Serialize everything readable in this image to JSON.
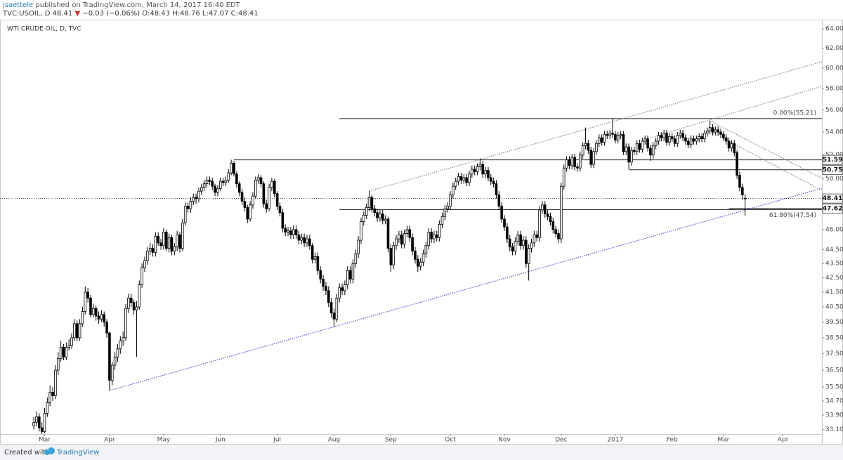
{
  "header": {
    "author": "jsaettele",
    "published": "published on TradingView.com, March 14, 2017 16:40 EDT",
    "symbol": "TVC:USOIL, D",
    "last": "48.41",
    "arrow": "▼",
    "change": "−0.03 (−0.06%)",
    "open": "O:48.43",
    "high": "H:48.76",
    "low": "L:47.07",
    "close": "C:48.41"
  },
  "footer": {
    "created": "Created with",
    "brand": "TradingView"
  },
  "chart_data": {
    "type": "candlestick",
    "title": "WTI CRUDE OIL, D, TVC",
    "log_scale": true,
    "grid": false,
    "up_color": "#ffffff",
    "down_color": "#000000",
    "border_color": "#000000",
    "xlim": [
      -12.5,
      291.4
    ],
    "ylim": [
      32.86,
      64.97
    ],
    "xticks": [
      {
        "value": 4,
        "label": "Mar"
      },
      {
        "value": 28,
        "label": "Apr"
      },
      {
        "value": 48,
        "label": "May"
      },
      {
        "value": 69,
        "label": "Jun"
      },
      {
        "value": 90,
        "label": "Jul"
      },
      {
        "value": 111,
        "label": "Aug"
      },
      {
        "value": 132,
        "label": "Sep"
      },
      {
        "value": 154,
        "label": "Oct"
      },
      {
        "value": 174,
        "label": "Nov"
      },
      {
        "value": 195,
        "label": "Dec"
      },
      {
        "value": 215,
        "label": "2017"
      },
      {
        "value": 236,
        "label": "Feb"
      },
      {
        "value": 255,
        "label": "Mar"
      },
      {
        "value": 277,
        "label": "Apr"
      }
    ],
    "yticks": [
      {
        "value": 64,
        "label": "64.00"
      },
      {
        "value": 62,
        "label": "62.00"
      },
      {
        "value": 60,
        "label": "60.00"
      },
      {
        "value": 58,
        "label": "58.00"
      },
      {
        "value": 56,
        "label": "56.00"
      },
      {
        "value": 54,
        "label": "54.00"
      },
      {
        "value": 52,
        "label": "52.00"
      },
      {
        "value": 50,
        "label": "50.00"
      },
      {
        "value": 46,
        "label": "46.00"
      },
      {
        "value": 44.5,
        "label": "44.50"
      },
      {
        "value": 43.5,
        "label": "43.50"
      },
      {
        "value": 42.5,
        "label": "42.50"
      },
      {
        "value": 41.5,
        "label": "41.50"
      },
      {
        "value": 40.5,
        "label": "40.50"
      },
      {
        "value": 39.5,
        "label": "39.50"
      },
      {
        "value": 38.5,
        "label": "38.50"
      },
      {
        "value": 37.5,
        "label": "37.50"
      },
      {
        "value": 36.5,
        "label": "36.50"
      },
      {
        "value": 35.5,
        "label": "35.50"
      },
      {
        "value": 34.7,
        "label": "34.70"
      },
      {
        "value": 33.9,
        "label": "33.90"
      },
      {
        "value": 33.1,
        "label": "33.10"
      }
    ],
    "open": [
      33.3,
      33.5,
      33.8,
      33.2,
      33.0,
      34.0,
      34.6,
      35.2,
      35.0,
      36.5,
      37.2,
      37.9,
      37.3,
      37.9,
      38.0,
      38.5,
      39.4,
      38.5,
      39.4,
      40.2,
      41.5,
      41.1,
      40.0,
      40.4,
      39.9,
      39.7,
      40.0,
      39.5,
      38.8,
      35.9,
      36.8,
      37.3,
      37.8,
      38.3,
      38.5,
      40.4,
      41.1,
      40.8,
      40.3,
      40.5,
      42.0,
      43.2,
      43.7,
      44.4,
      44.6,
      44.3,
      45.5,
      45.0,
      44.8,
      45.8,
      44.6,
      45.4,
      44.4,
      44.7,
      45.6,
      44.6,
      46.5,
      47.8,
      47.6,
      48.2,
      48.5,
      48.4,
      49.0,
      49.3,
      49.6,
      49.9,
      49.8,
      49.4,
      48.9,
      49.2,
      49.8,
      49.7,
      49.9,
      50.5,
      51.3,
      50.4,
      49.6,
      48.9,
      48.2,
      47.7,
      46.8,
      47.9,
      48.6,
      49.9,
      50.1,
      49.6,
      48.0,
      47.6,
      49.3,
      49.8,
      48.8,
      47.8,
      47.3,
      46.1,
      45.8,
      45.9,
      45.6,
      46.0,
      45.6,
      45.2,
      45.4,
      45.0,
      45.3,
      44.8,
      43.8,
      44.0,
      43.0,
      42.4,
      41.9,
      41.6,
      40.8,
      40.1,
      39.7,
      41.1,
      41.8,
      41.6,
      42.0,
      43.0,
      42.4,
      43.5,
      44.2,
      45.2,
      46.6,
      47.1,
      47.7,
      48.5,
      47.6,
      47.3,
      46.9,
      47.2,
      46.7,
      46.8,
      44.6,
      43.4,
      44.8,
      45.3,
      45.6,
      44.9,
      45.7,
      46.0,
      45.4,
      44.4,
      43.8,
      43.3,
      43.6,
      44.2,
      44.8,
      45.8,
      45.3,
      45.6,
      45.4,
      46.4,
      47.0,
      47.6,
      47.8,
      48.7,
      49.4,
      49.8,
      50.2,
      49.9,
      50.1,
      49.7,
      50.4,
      50.8,
      50.6,
      51.0,
      51.2,
      50.4,
      50.7,
      50.1,
      49.8,
      49.6,
      48.7,
      47.8,
      46.8,
      46.2,
      45.3,
      44.7,
      44.4,
      45.1,
      45.6,
      44.8,
      45.2,
      43.5,
      44.6,
      45.0,
      45.6,
      45.4,
      47.5,
      47.9,
      47.2,
      47.0,
      46.6,
      46.0,
      45.7,
      45.3,
      49.4,
      50.9,
      51.6,
      51.1,
      51.8,
      51.0,
      50.9,
      52.0,
      52.8,
      53.0,
      52.4,
      51.2,
      52.3,
      53.0,
      53.5,
      53.1,
      53.8,
      53.7,
      53.9,
      53.8,
      53.3,
      53.7,
      53.8,
      52.3,
      52.7,
      51.4,
      52.4,
      52.3,
      53.0,
      52.5,
      53.2,
      53.4,
      52.6,
      52.0,
      52.8,
      53.2,
      53.7,
      53.5,
      53.9,
      53.1,
      53.6,
      53.4,
      53.0,
      53.7,
      53.9,
      53.5,
      53.2,
      52.9,
      53.4,
      53.2,
      53.4,
      53.6,
      53.4,
      53.9,
      54.1,
      54.4,
      54.0,
      54.2,
      54.0,
      53.8,
      53.5,
      53.2,
      52.6,
      53.0,
      52.2,
      50.3,
      49.3,
      48.43
    ],
    "high": [
      33.8,
      34.1,
      34.0,
      33.5,
      34.3,
      34.9,
      35.6,
      35.5,
      36.8,
      37.6,
      38.3,
      38.1,
      38.2,
      38.4,
      38.8,
      39.7,
      39.6,
      39.7,
      40.5,
      41.9,
      41.8,
      41.3,
      40.7,
      40.6,
      40.2,
      40.3,
      40.2,
      39.7,
      38.9,
      37.0,
      37.6,
      38.1,
      38.6,
      38.9,
      40.7,
      41.4,
      41.4,
      41.0,
      40.9,
      42.3,
      43.5,
      44.0,
      44.7,
      45.0,
      44.9,
      45.8,
      45.8,
      45.3,
      46.1,
      46.0,
      45.7,
      45.6,
      45.0,
      45.9,
      45.8,
      46.8,
      48.1,
      48.1,
      48.5,
      48.8,
      48.8,
      49.3,
      49.6,
      49.9,
      50.2,
      50.2,
      50.1,
      49.6,
      49.5,
      50.1,
      50.1,
      50.2,
      50.8,
      51.6,
      51.5,
      50.6,
      49.8,
      49.2,
      48.5,
      47.9,
      48.2,
      48.9,
      50.2,
      50.4,
      50.3,
      49.8,
      48.3,
      49.6,
      50.1,
      50.0,
      49.0,
      48.1,
      47.6,
      46.4,
      46.2,
      46.2,
      46.3,
      46.3,
      45.9,
      45.7,
      45.7,
      45.6,
      45.6,
      45.0,
      44.3,
      44.3,
      43.3,
      42.7,
      42.2,
      41.9,
      41.1,
      40.4,
      41.4,
      42.1,
      42.1,
      42.3,
      43.3,
      43.3,
      43.8,
      44.5,
      45.5,
      46.9,
      47.4,
      48.0,
      49.0,
      48.7,
      47.9,
      47.6,
      47.5,
      47.5,
      47.1,
      47.0,
      44.9,
      45.1,
      45.6,
      45.9,
      45.9,
      46.0,
      46.3,
      46.3,
      45.7,
      44.7,
      44.1,
      43.9,
      44.5,
      45.1,
      46.1,
      46.1,
      45.9,
      45.9,
      46.7,
      47.3,
      47.9,
      48.1,
      49.0,
      49.7,
      50.1,
      50.5,
      50.5,
      50.4,
      50.4,
      50.7,
      51.1,
      51.1,
      51.3,
      51.7,
      51.5,
      51.0,
      51.0,
      50.4,
      50.1,
      49.9,
      49.0,
      48.1,
      47.1,
      46.5,
      45.6,
      45.0,
      45.4,
      45.9,
      45.9,
      45.5,
      45.5,
      44.9,
      45.3,
      45.9,
      45.9,
      47.8,
      48.2,
      48.2,
      47.5,
      47.3,
      46.9,
      46.3,
      46.0,
      49.7,
      51.2,
      51.9,
      51.9,
      52.1,
      52.1,
      51.3,
      52.3,
      53.1,
      54.4,
      53.3,
      52.7,
      52.6,
      53.3,
      53.8,
      53.8,
      54.1,
      54.1,
      54.2,
      55.2,
      54.1,
      54.0,
      54.1,
      54.1,
      53.0,
      53.0,
      52.7,
      52.7,
      53.3,
      53.3,
      53.5,
      53.7,
      53.7,
      52.9,
      53.1,
      53.5,
      54.0,
      54.0,
      54.2,
      54.2,
      53.9,
      53.9,
      53.7,
      54.0,
      54.2,
      54.2,
      53.8,
      53.5,
      53.7,
      53.7,
      53.7,
      53.9,
      53.9,
      54.2,
      54.4,
      55.0,
      54.7,
      54.5,
      54.5,
      54.3,
      54.1,
      53.8,
      53.5,
      53.3,
      53.3,
      52.4,
      50.6,
      49.6,
      48.76
    ],
    "low": [
      33.1,
      33.3,
      33.0,
      32.8,
      32.9,
      33.8,
      34.4,
      34.7,
      34.8,
      36.2,
      37.0,
      37.1,
      37.1,
      37.7,
      37.8,
      38.3,
      38.3,
      38.3,
      39.2,
      40.0,
      40.8,
      39.8,
      39.8,
      39.6,
      39.4,
      39.5,
      39.2,
      38.5,
      35.3,
      35.6,
      36.5,
      37.0,
      37.5,
      38.0,
      38.3,
      40.1,
      40.5,
      40.0,
      37.3,
      40.3,
      41.8,
      42.9,
      43.4,
      44.1,
      44.0,
      44.0,
      44.8,
      44.5,
      44.5,
      44.4,
      44.3,
      44.1,
      44.1,
      44.4,
      44.3,
      44.4,
      46.3,
      47.3,
      47.3,
      47.9,
      48.0,
      48.1,
      48.7,
      49.0,
      49.3,
      49.5,
      49.1,
      48.6,
      48.6,
      49.0,
      49.4,
      49.4,
      49.7,
      50.3,
      50.2,
      49.3,
      48.6,
      47.9,
      47.4,
      46.5,
      46.6,
      47.6,
      48.4,
      49.6,
      49.3,
      47.7,
      47.3,
      47.4,
      49.0,
      48.5,
      47.5,
      47.0,
      45.8,
      45.5,
      45.5,
      45.3,
      45.3,
      45.3,
      44.9,
      44.9,
      44.7,
      44.7,
      44.5,
      43.5,
      43.5,
      42.7,
      42.1,
      41.6,
      41.3,
      40.5,
      39.8,
      39.2,
      39.5,
      40.8,
      41.3,
      41.3,
      41.7,
      42.1,
      42.1,
      43.2,
      43.9,
      44.9,
      46.3,
      46.8,
      47.4,
      47.3,
      47.0,
      46.6,
      46.6,
      46.4,
      46.4,
      44.3,
      42.9,
      43.1,
      44.5,
      45.0,
      44.6,
      44.6,
      45.4,
      45.1,
      44.1,
      43.5,
      42.9,
      43.0,
      43.3,
      43.9,
      44.5,
      45.0,
      45.0,
      45.1,
      45.1,
      46.1,
      46.7,
      47.3,
      47.5,
      48.4,
      49.1,
      49.5,
      49.6,
      49.6,
      49.4,
      49.4,
      50.1,
      50.3,
      50.3,
      50.7,
      50.1,
      50.1,
      49.8,
      49.5,
      49.3,
      48.4,
      47.5,
      46.5,
      45.9,
      45.0,
      44.4,
      44.1,
      44.1,
      44.8,
      44.5,
      44.5,
      43.2,
      42.3,
      44.3,
      44.7,
      45.1,
      45.1,
      47.2,
      46.9,
      46.7,
      46.3,
      45.7,
      45.4,
      45.0,
      45.0,
      49.1,
      50.6,
      50.8,
      50.8,
      50.7,
      50.6,
      50.6,
      51.7,
      52.5,
      52.1,
      50.9,
      50.9,
      52.0,
      52.7,
      52.8,
      52.8,
      53.4,
      53.4,
      53.5,
      53.0,
      53.0,
      53.4,
      52.0,
      52.0,
      50.8,
      51.1,
      52.0,
      52.0,
      52.2,
      52.2,
      52.9,
      52.3,
      51.5,
      51.7,
      52.5,
      52.9,
      53.2,
      53.2,
      52.8,
      52.8,
      53.1,
      52.7,
      52.7,
      53.4,
      53.2,
      52.9,
      52.6,
      52.6,
      52.9,
      52.9,
      53.1,
      53.1,
      53.1,
      53.6,
      53.8,
      53.7,
      53.7,
      53.7,
      53.5,
      53.2,
      52.9,
      52.3,
      52.3,
      51.9,
      50.0,
      49.0,
      48.3,
      47.07
    ],
    "close": [
      33.5,
      33.8,
      33.2,
      33.0,
      34.0,
      34.6,
      35.2,
      35.0,
      36.5,
      37.2,
      37.9,
      37.3,
      37.9,
      38.0,
      38.5,
      39.4,
      38.5,
      39.4,
      40.2,
      41.5,
      41.1,
      40.0,
      40.4,
      39.9,
      39.7,
      40.0,
      39.5,
      38.8,
      35.9,
      36.8,
      37.3,
      37.8,
      38.3,
      38.5,
      40.4,
      41.1,
      40.8,
      40.3,
      40.5,
      42.0,
      43.2,
      43.7,
      44.4,
      44.6,
      44.3,
      45.5,
      45.0,
      44.8,
      45.8,
      44.6,
      45.4,
      44.4,
      44.7,
      45.6,
      44.6,
      46.5,
      47.8,
      47.6,
      48.2,
      48.5,
      48.4,
      49.0,
      49.3,
      49.6,
      49.9,
      49.8,
      49.4,
      48.9,
      49.2,
      49.8,
      49.7,
      49.9,
      50.5,
      51.3,
      50.4,
      49.6,
      48.9,
      48.2,
      47.7,
      46.8,
      47.9,
      48.6,
      49.9,
      50.1,
      49.6,
      48.0,
      47.6,
      49.3,
      49.8,
      48.8,
      47.8,
      47.3,
      46.1,
      45.8,
      45.9,
      45.6,
      46.0,
      45.6,
      45.2,
      45.4,
      45.0,
      45.3,
      44.8,
      43.8,
      44.0,
      43.0,
      42.4,
      41.9,
      41.6,
      40.8,
      40.1,
      39.7,
      41.1,
      41.8,
      41.6,
      42.0,
      43.0,
      42.4,
      43.5,
      44.2,
      45.2,
      46.6,
      47.1,
      47.7,
      48.5,
      47.6,
      47.3,
      46.9,
      47.2,
      46.7,
      46.8,
      44.6,
      43.4,
      44.8,
      45.3,
      45.6,
      44.9,
      45.7,
      46.0,
      45.4,
      44.4,
      43.8,
      43.3,
      43.6,
      44.2,
      44.8,
      45.8,
      45.3,
      45.6,
      45.4,
      46.4,
      47.0,
      47.6,
      47.8,
      48.7,
      49.4,
      49.8,
      50.2,
      49.9,
      50.1,
      49.7,
      50.4,
      50.8,
      50.6,
      51.0,
      51.2,
      50.4,
      50.7,
      50.1,
      49.8,
      49.6,
      48.7,
      47.8,
      46.8,
      46.2,
      45.3,
      44.7,
      44.4,
      45.1,
      45.6,
      44.8,
      45.2,
      43.5,
      44.6,
      45.0,
      45.6,
      45.4,
      47.5,
      47.9,
      47.2,
      47.0,
      46.6,
      46.0,
      45.7,
      45.3,
      49.4,
      50.9,
      51.6,
      51.1,
      51.8,
      51.0,
      50.9,
      52.0,
      52.8,
      53.0,
      52.4,
      51.2,
      52.3,
      53.0,
      53.5,
      53.1,
      53.8,
      53.7,
      53.9,
      53.8,
      53.3,
      53.7,
      53.8,
      52.3,
      52.7,
      51.4,
      52.4,
      52.3,
      53.0,
      52.5,
      53.2,
      53.4,
      52.6,
      52.0,
      52.8,
      53.2,
      53.7,
      53.5,
      53.9,
      53.1,
      53.6,
      53.4,
      53.0,
      53.7,
      53.9,
      53.5,
      53.2,
      52.9,
      53.4,
      53.2,
      53.4,
      53.6,
      53.4,
      53.9,
      54.1,
      54.4,
      54.0,
      54.2,
      54.0,
      53.8,
      53.5,
      53.2,
      52.6,
      53.0,
      52.2,
      50.3,
      49.3,
      48.7,
      48.41
    ],
    "levels": [
      {
        "value": 51.59,
        "from": 74
      },
      {
        "value": 50.75,
        "from": 220
      },
      {
        "value": 47.62,
        "from": 257
      }
    ],
    "fib": [
      {
        "value": 55.21,
        "label": "0.00%(55.21)",
        "from": 113
      },
      {
        "value": 47.54,
        "label": "61.80%(47.54)",
        "from": 113
      }
    ],
    "drawings": [
      {
        "x": [
          28,
          263
        ],
        "y": [
          35.3,
          47.5
        ],
        "color": "#3a3ad6"
      },
      {
        "x": [
          124,
          291
        ],
        "y": [
          49.0,
          60.6
        ],
        "color": "#777777"
      },
      {
        "x": [
          228,
          291
        ],
        "y": [
          53.5,
          58.2
        ],
        "color": "#777777"
      },
      {
        "x": [
          250,
          291
        ],
        "y": [
          55.0,
          50.1
        ],
        "color": "#777777"
      },
      {
        "x": [
          249,
          291
        ],
        "y": [
          54.2,
          49.1
        ],
        "color": "#777777"
      }
    ]
  }
}
